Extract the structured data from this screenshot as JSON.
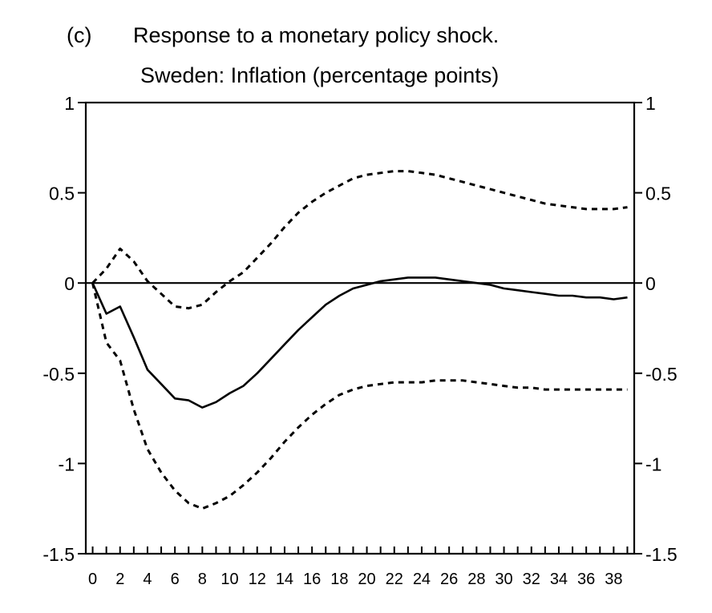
{
  "chart_data": {
    "type": "line",
    "panel_label": "(c)",
    "title": "Response to a monetary policy shock.",
    "subtitle": "Sweden: Inflation (percentage points)",
    "xlabel": "",
    "ylabel": "",
    "xlim": [
      -0.5,
      39.5
    ],
    "ylim": [
      -1.5,
      1
    ],
    "x_ticks": [
      0,
      2,
      4,
      6,
      8,
      10,
      12,
      14,
      16,
      18,
      20,
      22,
      24,
      26,
      28,
      30,
      32,
      34,
      36,
      38
    ],
    "y_ticks": [
      1,
      0.5,
      0,
      -0.5,
      -1,
      -1.5
    ],
    "y_tick_labels": [
      "1",
      "0.5",
      "0",
      "-0.5",
      "-1",
      "-1.5"
    ],
    "grid": false,
    "zero_line": true,
    "x": [
      0,
      1,
      2,
      3,
      4,
      5,
      6,
      7,
      8,
      9,
      10,
      11,
      12,
      13,
      14,
      15,
      16,
      17,
      18,
      19,
      20,
      21,
      22,
      23,
      24,
      25,
      26,
      27,
      28,
      29,
      30,
      31,
      32,
      33,
      34,
      35,
      36,
      37,
      38,
      39
    ],
    "series": [
      {
        "style": "solid",
        "values": [
          0,
          -0.17,
          -0.13,
          -0.3,
          -0.48,
          -0.56,
          -0.64,
          -0.65,
          -0.69,
          -0.66,
          -0.61,
          -0.57,
          -0.5,
          -0.42,
          -0.34,
          -0.26,
          -0.19,
          -0.12,
          -0.07,
          -0.03,
          -0.01,
          0.01,
          0.02,
          0.03,
          0.03,
          0.03,
          0.02,
          0.01,
          0,
          -0.01,
          -0.03,
          -0.04,
          -0.05,
          -0.06,
          -0.07,
          -0.07,
          -0.08,
          -0.08,
          -0.09,
          -0.08
        ]
      },
      {
        "style": "dotted",
        "values": [
          0,
          0.08,
          0.19,
          0.12,
          0.01,
          -0.06,
          -0.13,
          -0.14,
          -0.12,
          -0.05,
          0.01,
          0.06,
          0.14,
          0.22,
          0.31,
          0.39,
          0.45,
          0.5,
          0.54,
          0.58,
          0.6,
          0.61,
          0.62,
          0.62,
          0.61,
          0.6,
          0.58,
          0.56,
          0.54,
          0.52,
          0.5,
          0.48,
          0.46,
          0.44,
          0.43,
          0.42,
          0.41,
          0.41,
          0.41,
          0.42
        ]
      },
      {
        "style": "dotted",
        "values": [
          0,
          -0.33,
          -0.43,
          -0.7,
          -0.92,
          -1.05,
          -1.15,
          -1.22,
          -1.25,
          -1.22,
          -1.18,
          -1.12,
          -1.05,
          -0.97,
          -0.88,
          -0.8,
          -0.73,
          -0.67,
          -0.62,
          -0.59,
          -0.57,
          -0.56,
          -0.55,
          -0.55,
          -0.55,
          -0.54,
          -0.54,
          -0.54,
          -0.55,
          -0.56,
          -0.57,
          -0.58,
          -0.58,
          -0.59,
          -0.59,
          -0.59,
          -0.59,
          -0.59,
          -0.59,
          -0.59
        ]
      }
    ]
  }
}
